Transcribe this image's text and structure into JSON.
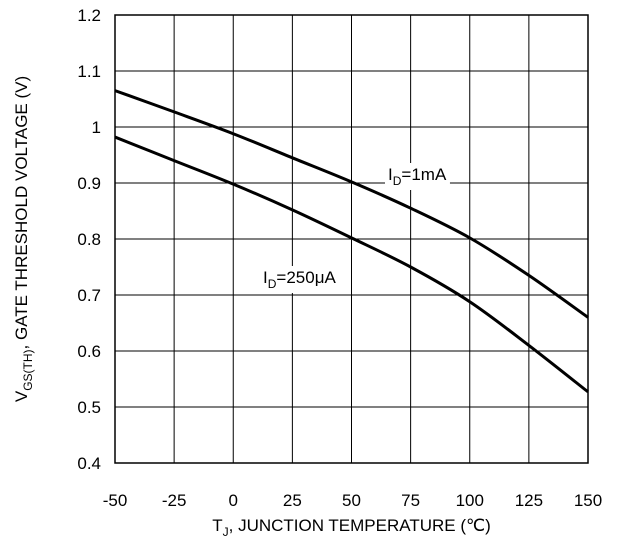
{
  "chart_data": {
    "type": "line",
    "xlabel": {
      "main": "T",
      "sub": "J",
      "rest": ", JUNCTION TEMPERATURE (℃)"
    },
    "ylabel": {
      "main": "V",
      "sub": "GS(TH)",
      "rest": ", GATE THRESHOLD VOLTAGE (V)"
    },
    "xlim": [
      -50,
      150
    ],
    "ylim": [
      0.4,
      1.2
    ],
    "x_ticks": [
      -50,
      -25,
      0,
      25,
      50,
      75,
      100,
      125,
      150
    ],
    "y_ticks": [
      0.4,
      0.5,
      0.6,
      0.7,
      0.8,
      0.9,
      1,
      1.1,
      1.2
    ],
    "x_tick_labels": [
      "-50",
      "-25",
      "0",
      "25",
      "50",
      "75",
      "100",
      "125",
      "150"
    ],
    "y_tick_labels": [
      "0.4",
      "0.5",
      "0.6",
      "0.7",
      "0.8",
      "0.9",
      "1",
      "1.1",
      "1.2"
    ],
    "grid": true,
    "series": [
      {
        "name": "ID=1mA",
        "label": {
          "main": "I",
          "sub": "D",
          "rest": "=1mA"
        },
        "x": [
          -50,
          -25,
          0,
          25,
          50,
          75,
          100,
          125,
          150
        ],
        "y": [
          1.065,
          1.027,
          0.988,
          0.945,
          0.902,
          0.855,
          0.802,
          0.735,
          0.66
        ]
      },
      {
        "name": "ID=250μA",
        "label": {
          "main": "I",
          "sub": "D",
          "rest": "=250μA"
        },
        "x": [
          -50,
          -25,
          0,
          25,
          50,
          75,
          100,
          125,
          150
        ],
        "y": [
          0.982,
          0.94,
          0.898,
          0.852,
          0.802,
          0.75,
          0.688,
          0.61,
          0.527
        ]
      }
    ]
  }
}
